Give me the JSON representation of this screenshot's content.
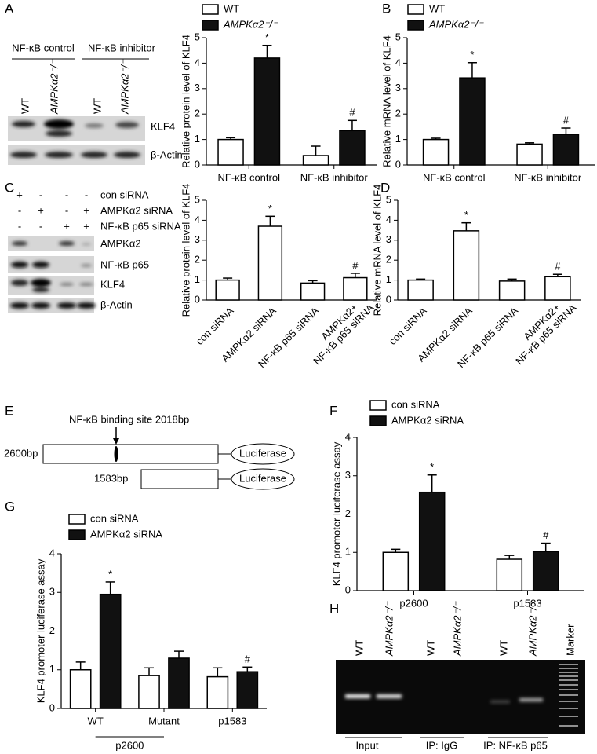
{
  "panel_labels": [
    "A",
    "B",
    "C",
    "D",
    "E",
    "F",
    "G",
    "H"
  ],
  "blot_a": {
    "groups": [
      "NF-κB control",
      "NF-κB inhibitor"
    ],
    "lanes": [
      "WT",
      "AMPKα2⁻/⁻",
      "WT",
      "AMPKα2⁻/⁻"
    ],
    "rows": [
      "KLF4",
      "β-Actin"
    ]
  },
  "blot_c": {
    "conditions": [
      {
        "label": "con siRNA",
        "signs": [
          "+",
          "-",
          "-",
          "-"
        ]
      },
      {
        "label": "AMPKα2 siRNA",
        "signs": [
          "-",
          "+",
          "-",
          "+"
        ]
      },
      {
        "label": "NF-κB p65 siRNA",
        "signs": [
          "-",
          "-",
          "+",
          "+"
        ]
      }
    ],
    "rows": [
      "AMPKα2",
      "NF-κB p65",
      "KLF4",
      "β-Actin"
    ]
  },
  "diagram_e": {
    "site": "NF-κB binding site 2018bp",
    "constructs": [
      "2600bp",
      "1583bp"
    ],
    "reporter": "Luciferase"
  },
  "gel_h": {
    "lanes": [
      "WT",
      "AMPKα2⁻/⁻",
      "WT",
      "AMPKα2⁻/⁻",
      "WT",
      "AMPKα2⁻/⁻",
      "Marker"
    ],
    "groups": [
      "Input",
      "IP: IgG",
      "IP: NF-κB p65"
    ]
  },
  "chart_data": [
    {
      "type": "bar",
      "y_label": "Relative protein level of KLF4",
      "categories": [
        "NF-κB control",
        "NF-κB inhibitor"
      ],
      "ylim": [
        0,
        5
      ],
      "yticks": [
        0,
        1,
        2,
        3,
        4,
        5
      ],
      "series": [
        {
          "name": "WT",
          "color": "#ffffff",
          "values": [
            1.0,
            0.37
          ],
          "errors": [
            0.07,
            0.37
          ]
        },
        {
          "name": "AMPKα2⁻/⁻",
          "color": "#111111",
          "values": [
            4.2,
            1.35
          ],
          "errors": [
            0.5,
            0.4
          ],
          "markers": [
            "*",
            "#"
          ]
        }
      ]
    },
    {
      "type": "bar",
      "y_label": "Relative mRNA level of KLF4",
      "categories": [
        "NF-κB control",
        "NF-κB inhibitor"
      ],
      "ylim": [
        0,
        5
      ],
      "yticks": [
        0,
        1,
        2,
        3,
        4,
        5
      ],
      "series": [
        {
          "name": "WT",
          "color": "#ffffff",
          "values": [
            1.0,
            0.82
          ],
          "errors": [
            0.05,
            0.05
          ]
        },
        {
          "name": "AMPKα2⁻/⁻",
          "color": "#111111",
          "values": [
            3.42,
            1.2
          ],
          "errors": [
            0.6,
            0.25
          ],
          "markers": [
            "*",
            "#"
          ]
        }
      ]
    },
    {
      "type": "bar",
      "y_label": "Relative protein level of KLF4",
      "categories": [
        "con siRNA",
        "AMPKα2 siRNA",
        "NF-κB p65 siRNA",
        [
          "AMPKα2+",
          "NF-κB p65 siRNA"
        ]
      ],
      "ylim": [
        0,
        5
      ],
      "yticks": [
        0,
        1,
        2,
        3,
        4,
        5
      ],
      "color": "#ffffff",
      "values": [
        1.0,
        3.7,
        0.85,
        1.12
      ],
      "errors": [
        0.1,
        0.5,
        0.12,
        0.22
      ],
      "markers": [
        null,
        "*",
        null,
        "#"
      ]
    },
    {
      "type": "bar",
      "y_label": "Relative mRNA level of KLF4",
      "categories": [
        "con siRNA",
        "AMPKα2 siRNA",
        "NF-κB p65 siRNA",
        [
          "AMPKα2+",
          "NF-κB p65 siRNA"
        ]
      ],
      "ylim": [
        0,
        5
      ],
      "yticks": [
        0,
        1,
        2,
        3,
        4,
        5
      ],
      "color": "#ffffff",
      "values": [
        1.0,
        3.47,
        0.95,
        1.17
      ],
      "errors": [
        0.05,
        0.4,
        0.1,
        0.12
      ],
      "markers": [
        null,
        "*",
        null,
        "#"
      ]
    },
    {
      "type": "bar",
      "y_label": "KLF4 promoter luciferase assay",
      "categories": [
        "p2600",
        "p1583"
      ],
      "ylim": [
        0,
        4
      ],
      "yticks": [
        0,
        1,
        2,
        3,
        4
      ],
      "series": [
        {
          "name": "con siRNA",
          "color": "#ffffff",
          "values": [
            1.0,
            0.82
          ],
          "errors": [
            0.08,
            0.1
          ]
        },
        {
          "name": "AMPKα2 siRNA",
          "color": "#111111",
          "values": [
            2.57,
            1.02
          ],
          "errors": [
            0.45,
            0.22
          ],
          "markers": [
            "*",
            "#"
          ]
        }
      ]
    },
    {
      "type": "bar",
      "y_label": "KLF4 promoter luciferase assay",
      "categories": [
        "WT",
        "Mutant",
        "p1583"
      ],
      "group_label": "p2600",
      "ylim": [
        0,
        4
      ],
      "yticks": [
        0,
        1,
        2,
        3,
        4
      ],
      "series": [
        {
          "name": "con siRNA",
          "color": "#ffffff",
          "values": [
            1.0,
            0.85,
            0.82
          ],
          "errors": [
            0.2,
            0.2,
            0.23
          ]
        },
        {
          "name": "AMPKα2 siRNA",
          "color": "#111111",
          "values": [
            2.95,
            1.3,
            0.95
          ],
          "errors": [
            0.32,
            0.18,
            0.12
          ],
          "markers": [
            "*",
            null,
            "#"
          ]
        }
      ]
    }
  ]
}
